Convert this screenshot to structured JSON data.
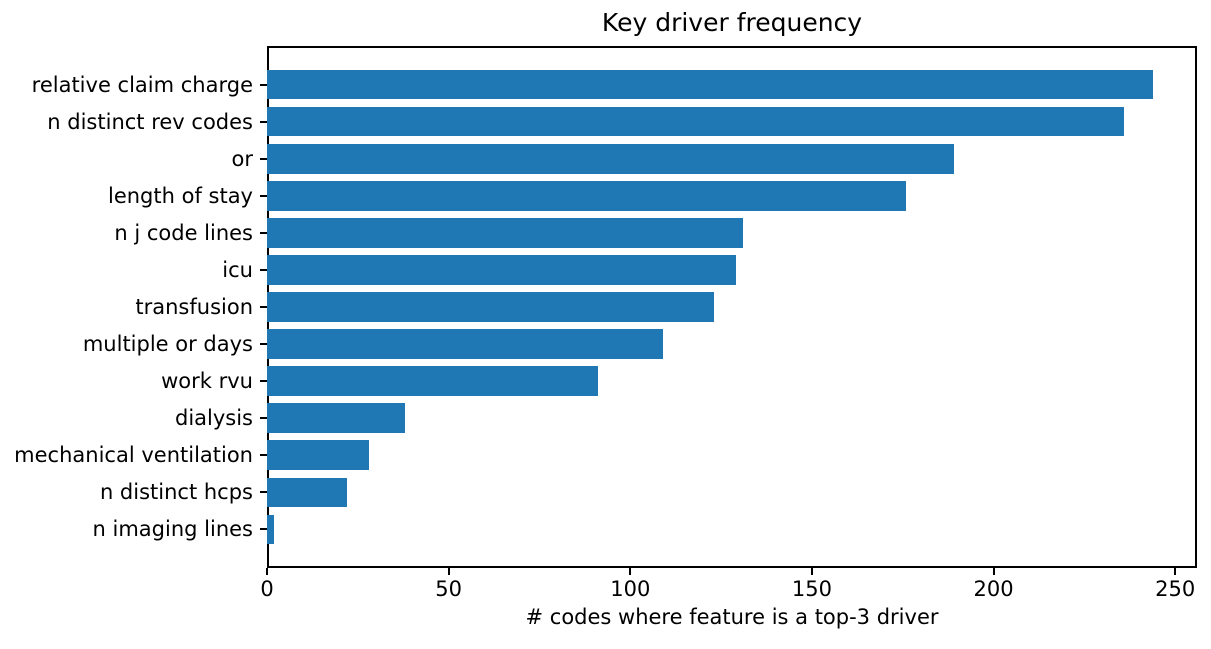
{
  "chart_data": {
    "type": "bar",
    "orientation": "horizontal",
    "title": "Key driver frequency",
    "xlabel": "# codes where feature is a top-3 driver",
    "ylabel": "",
    "categories": [
      "relative claim charge",
      "n distinct rev codes",
      "or",
      "length of stay",
      "n j code lines",
      "icu",
      "transfusion",
      "multiple or days",
      "work rvu",
      "dialysis",
      "mechanical ventilation",
      "n distinct hcps",
      "n imaging lines"
    ],
    "values": [
      244,
      236,
      189,
      176,
      131,
      129,
      123,
      109,
      91,
      38,
      28,
      22,
      2
    ],
    "xticks": [
      0,
      50,
      100,
      150,
      200,
      250
    ],
    "xlim": [
      0,
      256
    ],
    "bar_color": "#1f77b4",
    "axis_color": "#000000",
    "background_color": "#ffffff",
    "grid": false,
    "legend": null
  }
}
